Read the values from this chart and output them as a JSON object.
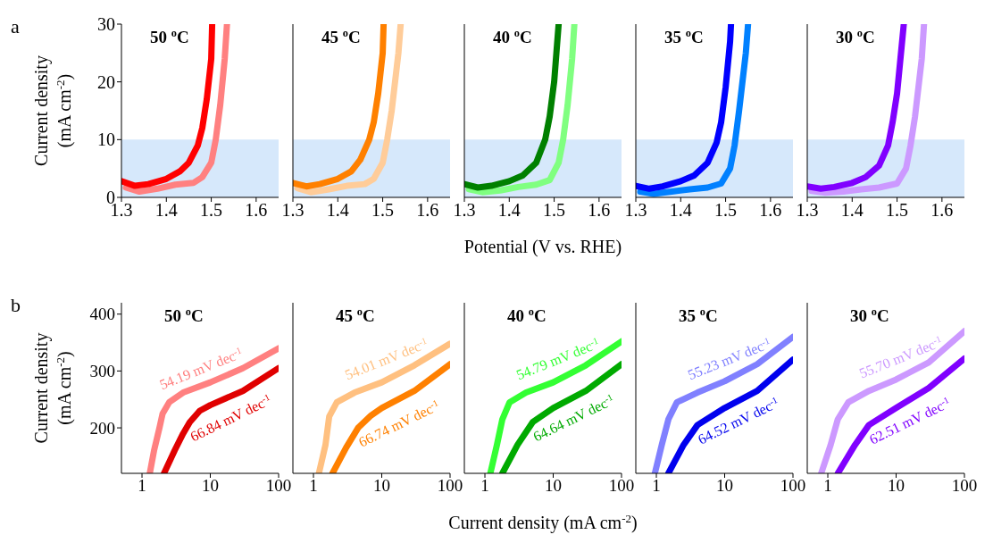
{
  "chart_data": [
    {
      "type": "line",
      "title": "50 $^{o}$C",
      "ylabel": "Current density\n(mA cm$^{-2}$)",
      "annotations": [
        "a"
      ],
      "xlim": [
        1.3,
        1.65
      ],
      "xticks": [
        1.3,
        1.4,
        1.5,
        1.6
      ],
      "ylim": [
        0,
        30
      ],
      "yticks": [
        0,
        10,
        20,
        30
      ],
      "bands": [
        {
          "axis": "y",
          "from": 0,
          "to": 10,
          "color": "#d6e8fb"
        }
      ],
      "series": [
        {
          "color": "#ff8080",
          "x": [
            1.31,
            1.34,
            1.38,
            1.42,
            1.46,
            1.48,
            1.5,
            1.51,
            1.52,
            1.53,
            1.535
          ],
          "values": [
            1.7,
            1.0,
            1.5,
            2.2,
            2.5,
            3.5,
            6,
            10,
            16,
            24,
            30
          ]
        },
        {
          "color": "#ff0000",
          "x": [
            1.3,
            1.33,
            1.36,
            1.4,
            1.43,
            1.45,
            1.47,
            1.48,
            1.49,
            1.5,
            1.502
          ],
          "values": [
            2.8,
            2.0,
            2.3,
            3.2,
            4.5,
            6,
            9,
            12,
            17,
            24,
            30
          ]
        }
      ]
    },
    {
      "type": "line",
      "title": "45 $^{o}$C",
      "tick_labels": "x",
      "xlim": [
        1.3,
        1.65
      ],
      "xticks": [
        1.3,
        1.4,
        1.5,
        1.6
      ],
      "ylim": [
        0,
        30
      ],
      "yticks": [
        0,
        10,
        20,
        30
      ],
      "bands": [
        {
          "axis": "y",
          "from": 0,
          "to": 10,
          "color": "#d6e8fb"
        }
      ],
      "series": [
        {
          "color": "#ffcc99",
          "x": [
            1.31,
            1.34,
            1.38,
            1.42,
            1.46,
            1.48,
            1.5,
            1.51,
            1.52,
            1.535,
            1.54
          ],
          "values": [
            1.6,
            0.9,
            1.4,
            2.0,
            2.3,
            3.2,
            6,
            10,
            15,
            25,
            30
          ]
        },
        {
          "color": "#ff8000",
          "x": [
            1.3,
            1.33,
            1.36,
            1.4,
            1.43,
            1.45,
            1.47,
            1.48,
            1.49,
            1.5,
            1.502
          ],
          "values": [
            2.5,
            1.9,
            2.3,
            3.2,
            4.5,
            6.5,
            10,
            13,
            18,
            25,
            30
          ]
        }
      ]
    },
    {
      "type": "line",
      "title": "40 $^{o}$C",
      "tick_labels": "x",
      "xlabel": "Potential (V vs. RHE)",
      "xlim": [
        1.3,
        1.65
      ],
      "xticks": [
        1.3,
        1.4,
        1.5,
        1.6
      ],
      "ylim": [
        0,
        30
      ],
      "yticks": [
        0,
        10,
        20,
        30
      ],
      "bands": [
        {
          "axis": "y",
          "from": 0,
          "to": 10,
          "color": "#d6e8fb"
        }
      ],
      "series": [
        {
          "color": "#80ff80",
          "x": [
            1.31,
            1.34,
            1.38,
            1.42,
            1.46,
            1.49,
            1.51,
            1.52,
            1.53,
            1.54,
            1.545
          ],
          "values": [
            1.4,
            0.9,
            1.2,
            1.8,
            2.2,
            3,
            6,
            10,
            16,
            24,
            30
          ]
        },
        {
          "color": "#008000",
          "x": [
            1.3,
            1.33,
            1.36,
            1.4,
            1.43,
            1.46,
            1.48,
            1.49,
            1.5,
            1.505,
            1.51
          ],
          "values": [
            2.3,
            1.7,
            2.0,
            2.8,
            3.8,
            6,
            10,
            14,
            20,
            25,
            30
          ]
        }
      ]
    },
    {
      "type": "line",
      "title": "35 $^{o}$C",
      "tick_labels": "x",
      "xlim": [
        1.3,
        1.65
      ],
      "xticks": [
        1.3,
        1.4,
        1.5,
        1.6
      ],
      "ylim": [
        0,
        30
      ],
      "yticks": [
        0,
        10,
        20,
        30
      ],
      "bands": [
        {
          "axis": "y",
          "from": 0,
          "to": 10,
          "color": "#d6e8fb"
        }
      ],
      "series": [
        {
          "color": "#0080ff",
          "x": [
            1.31,
            1.34,
            1.38,
            1.42,
            1.46,
            1.49,
            1.51,
            1.52,
            1.53,
            1.545,
            1.55
          ],
          "values": [
            1.0,
            0.6,
            1.0,
            1.4,
            1.7,
            2.4,
            5,
            9,
            15,
            25,
            30
          ]
        },
        {
          "color": "#0000ff",
          "x": [
            1.3,
            1.33,
            1.36,
            1.4,
            1.43,
            1.46,
            1.48,
            1.49,
            1.5,
            1.51,
            1.512
          ],
          "values": [
            2.0,
            1.5,
            1.9,
            2.8,
            3.8,
            6,
            9.5,
            13,
            19,
            27,
            30
          ]
        }
      ]
    },
    {
      "type": "line",
      "title": "30 $^{o}$C",
      "tick_labels": "x",
      "xlim": [
        1.3,
        1.65
      ],
      "xticks": [
        1.3,
        1.4,
        1.5,
        1.6
      ],
      "ylim": [
        0,
        30
      ],
      "yticks": [
        0,
        10,
        20,
        30
      ],
      "bands": [
        {
          "axis": "y",
          "from": 0,
          "to": 10,
          "color": "#d6e8fb"
        }
      ],
      "series": [
        {
          "color": "#cc99ff",
          "x": [
            1.31,
            1.34,
            1.38,
            1.42,
            1.46,
            1.5,
            1.52,
            1.53,
            1.54,
            1.555,
            1.56
          ],
          "values": [
            1.1,
            0.8,
            1.0,
            1.4,
            1.7,
            2.4,
            5,
            9,
            14,
            24,
            30
          ]
        },
        {
          "color": "#8000ff",
          "x": [
            1.3,
            1.33,
            1.36,
            1.4,
            1.43,
            1.46,
            1.48,
            1.49,
            1.5,
            1.51,
            1.515
          ],
          "values": [
            1.9,
            1.5,
            1.8,
            2.5,
            3.5,
            5.5,
            9,
            13,
            18,
            26,
            30
          ]
        }
      ]
    },
    {
      "type": "line",
      "title": "50 $^{o}$C",
      "ylabel": "Current density\n(mA cm$^{-2}$)",
      "annotations": [
        "b"
      ],
      "log": "x",
      "xlim": [
        0.5,
        100
      ],
      "xticks": [
        1,
        10,
        100
      ],
      "ylim": [
        120,
        420
      ],
      "yticks": [
        200,
        300,
        400
      ],
      "series": [
        {
          "name": "54.19 mV dec$^{-1}$",
          "color": "#ff8080",
          "x": [
            1.3,
            1.5,
            1.8,
            2.0,
            2.5,
            4,
            10,
            30,
            100
          ],
          "values": [
            120,
            160,
            200,
            225,
            245,
            262,
            280,
            305,
            340
          ]
        },
        {
          "name": "66.84 mV dec$^{-1}$",
          "color": "#e00000",
          "x": [
            2.1,
            3,
            4,
            5,
            7,
            10,
            30,
            100
          ],
          "values": [
            120,
            160,
            190,
            210,
            230,
            240,
            265,
            305
          ]
        }
      ]
    },
    {
      "type": "line",
      "title": "45 $^{o}$C",
      "tick_labels": "x",
      "log": "x",
      "xlim": [
        0.5,
        100
      ],
      "xticks": [
        1,
        10,
        100
      ],
      "ylim": [
        120,
        420
      ],
      "yticks": [
        200,
        300,
        400
      ],
      "series": [
        {
          "name": "54.01 mV dec$^{-1}$",
          "color": "#ffc080",
          "x": [
            1.2,
            1.5,
            1.7,
            2.2,
            4,
            10,
            30,
            100
          ],
          "values": [
            120,
            170,
            220,
            245,
            262,
            280,
            310,
            348
          ]
        },
        {
          "name": "66.74 mV dec$^{-1}$",
          "color": "#ff8000",
          "x": [
            1.9,
            3,
            4.5,
            7,
            10,
            30,
            100
          ],
          "values": [
            120,
            165,
            200,
            222,
            235,
            265,
            312
          ]
        }
      ]
    },
    {
      "type": "line",
      "title": "40 $^{o}$C",
      "tick_labels": "x",
      "xlabel": "Current density (mA cm$^{-2}$)",
      "log": "x",
      "xlim": [
        0.5,
        100
      ],
      "xticks": [
        1,
        10,
        100
      ],
      "ylim": [
        120,
        420
      ],
      "yticks": [
        200,
        300,
        400
      ],
      "series": [
        {
          "name": "54.79 mV dec$^{-1}$",
          "color": "#33ff33",
          "x": [
            1.2,
            1.5,
            1.8,
            2.3,
            4,
            10,
            30,
            100
          ],
          "values": [
            120,
            170,
            215,
            245,
            262,
            280,
            310,
            352
          ]
        },
        {
          "name": "64.64 mV dec$^{-1}$",
          "color": "#00aa00",
          "x": [
            1.8,
            3,
            5,
            10,
            30,
            100
          ],
          "values": [
            120,
            170,
            210,
            235,
            265,
            312
          ]
        }
      ]
    },
    {
      "type": "line",
      "title": "35 $^{o}$C",
      "tick_labels": "x",
      "log": "x",
      "xlim": [
        0.5,
        100
      ],
      "xticks": [
        1,
        10,
        100
      ],
      "ylim": [
        120,
        420
      ],
      "yticks": [
        200,
        300,
        400
      ],
      "series": [
        {
          "name": "55.23 mV dec$^{-1}$",
          "color": "#8080ff",
          "x": [
            0.95,
            1.2,
            1.5,
            2,
            4,
            10,
            30,
            100
          ],
          "values": [
            120,
            170,
            215,
            245,
            262,
            282,
            312,
            360
          ]
        },
        {
          "name": "64.52 mV dec$^{-1}$",
          "color": "#0000ee",
          "x": [
            1.5,
            2.5,
            4,
            10,
            30,
            100
          ],
          "values": [
            120,
            170,
            205,
            235,
            265,
            320
          ]
        }
      ]
    },
    {
      "type": "line",
      "title": "30 $^{o}$C",
      "tick_labels": "x",
      "log": "x",
      "xlim": [
        0.5,
        100
      ],
      "xticks": [
        1,
        10,
        100
      ],
      "ylim": [
        120,
        420
      ],
      "yticks": [
        200,
        300,
        400
      ],
      "series": [
        {
          "name": "55.70 mV dec$^{-1}$",
          "color": "#cc99ff",
          "x": [
            0.8,
            1.1,
            1.4,
            2,
            4,
            10,
            30,
            100
          ],
          "values": [
            120,
            170,
            215,
            245,
            265,
            285,
            315,
            370
          ]
        },
        {
          "name": "62.51 mV dec$^{-1}$",
          "color": "#8000ff",
          "x": [
            1.4,
            2.5,
            4,
            10,
            30,
            100
          ],
          "values": [
            120,
            170,
            205,
            235,
            270,
            322
          ]
        }
      ]
    }
  ]
}
